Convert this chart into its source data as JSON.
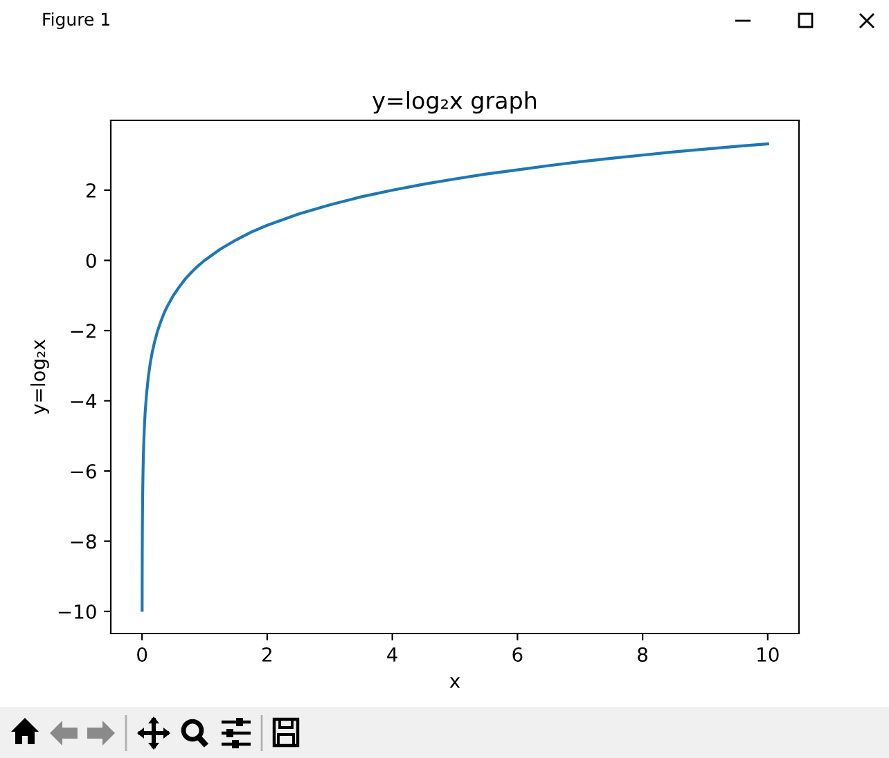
{
  "chart_data": {
    "type": "line",
    "title": "y=log₂x graph",
    "xlabel": "x",
    "ylabel": "y=log₂x",
    "annotations": [
      "Figure 1"
    ],
    "x": [
      0.001,
      0.002,
      0.003,
      0.005,
      0.0075,
      0.01,
      0.015,
      0.02,
      0.03,
      0.04,
      0.05,
      0.07,
      0.1,
      0.13,
      0.16,
      0.2,
      0.25,
      0.3,
      0.35,
      0.4,
      0.5,
      0.6,
      0.7,
      0.8,
      0.9,
      1,
      1.25,
      1.5,
      1.75,
      2,
      2.5,
      3,
      3.5,
      4,
      4.5,
      5,
      5.5,
      6,
      6.5,
      7,
      7.5,
      8,
      8.5,
      9,
      9.5,
      10
    ],
    "series": [
      {
        "color": "#1f77b4",
        "values": [
          -9.97,
          -8.97,
          -8.38,
          -7.64,
          -7.06,
          -6.64,
          -6.06,
          -5.64,
          -5.06,
          -4.64,
          -4.32,
          -3.84,
          -3.32,
          -2.94,
          -2.64,
          -2.32,
          -2.0,
          -1.74,
          -1.51,
          -1.32,
          -1.0,
          -0.74,
          -0.51,
          -0.32,
          -0.15,
          0,
          0.32,
          0.58,
          0.81,
          1,
          1.32,
          1.58,
          1.81,
          2,
          2.17,
          2.32,
          2.46,
          2.58,
          2.7,
          2.81,
          2.91,
          3,
          3.09,
          3.17,
          3.25,
          3.32
        ]
      }
    ],
    "xlim": [
      -0.5,
      10.5
    ],
    "ylim": [
      -10.63,
      3.99
    ],
    "xticks": [
      0,
      2,
      4,
      6,
      8,
      10
    ],
    "yticks": [
      {
        "value": -10,
        "label": "−10"
      },
      {
        "value": -8,
        "label": "−8"
      },
      {
        "value": -6,
        "label": "−6"
      },
      {
        "value": -4,
        "label": "−4"
      },
      {
        "value": -2,
        "label": "−2"
      },
      0,
      2
    ],
    "line_style": "solid"
  }
}
